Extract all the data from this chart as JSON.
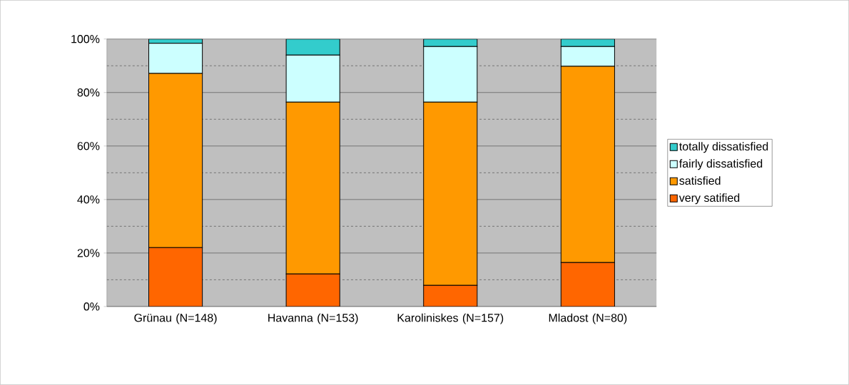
{
  "chart_data": {
    "type": "bar",
    "stacked": true,
    "categories": [
      "Grünau (N=148)",
      "Havanna (N=153)",
      "Karoliniskes (N=157)",
      "Mladost (N=80)"
    ],
    "series": [
      {
        "name": "very satified",
        "color": "#ff6600",
        "values": [
          22,
          12.2,
          7.9,
          16.4
        ]
      },
      {
        "name": "satisfied",
        "color": "#ff9900",
        "values": [
          65.1,
          64.2,
          68.5,
          73.4
        ]
      },
      {
        "name": "fairly dissatisfied",
        "color": "#ccffff",
        "values": [
          11.3,
          17.6,
          20.8,
          7.4
        ]
      },
      {
        "name": "totally dissatisfied",
        "color": "#33cccc",
        "values": [
          1.6,
          6,
          2.8,
          2.8
        ]
      }
    ],
    "ylim": [
      0,
      100
    ],
    "yticks": [
      {
        "value": 0,
        "label": "0%"
      },
      {
        "value": 10,
        "label": null
      },
      {
        "value": 20,
        "label": "20%"
      },
      {
        "value": 30,
        "label": null
      },
      {
        "value": 40,
        "label": "40%"
      },
      {
        "value": 50,
        "label": null
      },
      {
        "value": 60,
        "label": "60%"
      },
      {
        "value": 70,
        "label": null
      },
      {
        "value": 80,
        "label": "80%"
      },
      {
        "value": 90,
        "label": null
      },
      {
        "value": 100,
        "label": "100%"
      }
    ],
    "grid": "y",
    "legend": "right"
  }
}
